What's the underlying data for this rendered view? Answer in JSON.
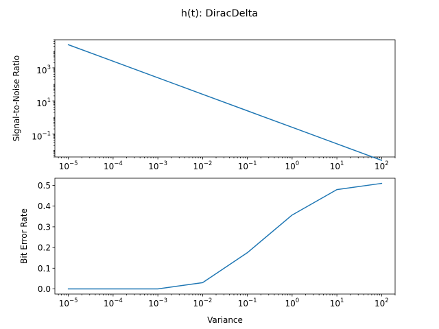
{
  "figure": {
    "suptitle": "h(t): DiracDelta"
  },
  "colors": {
    "series": "#1f77b4",
    "axes": "#000000",
    "background": "#ffffff"
  },
  "chart_data": [
    {
      "type": "line",
      "title": "",
      "xlabel": "",
      "ylabel": "Signal-to-Noise Ratio",
      "xscale": "log",
      "yscale": "log",
      "xlim": [
        5e-06,
        200
      ],
      "ylim": [
        0.004,
        50000
      ],
      "x": [
        1e-05,
        0.0001,
        0.001,
        0.01,
        0.1,
        1,
        10,
        100
      ],
      "series": [
        {
          "name": "",
          "values": [
            25000,
            2500,
            250,
            25,
            2.5,
            0.25,
            0.025,
            0.0025
          ]
        }
      ],
      "xticks": [
        1e-05,
        0.0001,
        0.001,
        0.01,
        0.1,
        1,
        10,
        100
      ],
      "xtick_labels": [
        {
          "base": "10",
          "exp": "−5"
        },
        {
          "base": "10",
          "exp": "−4"
        },
        {
          "base": "10",
          "exp": "−3"
        },
        {
          "base": "10",
          "exp": "−2"
        },
        {
          "base": "10",
          "exp": "−1"
        },
        {
          "base": "10",
          "exp": "0"
        },
        {
          "base": "10",
          "exp": "1"
        },
        {
          "base": "10",
          "exp": "2"
        }
      ],
      "yticks": [
        0.1,
        10,
        1000
      ],
      "ytick_labels": [
        {
          "base": "10",
          "exp": "−1"
        },
        {
          "base": "10",
          "exp": "1"
        },
        {
          "base": "10",
          "exp": "3"
        }
      ],
      "grid": false
    },
    {
      "type": "line",
      "title": "",
      "xlabel": "Variance",
      "ylabel": "Bit Error Rate",
      "xscale": "log",
      "yscale": "linear",
      "xlim": [
        5e-06,
        200
      ],
      "ylim": [
        -0.025,
        0.535
      ],
      "x": [
        1e-05,
        0.0001,
        0.001,
        0.01,
        0.1,
        1,
        10,
        100
      ],
      "series": [
        {
          "name": "",
          "values": [
            0.0,
            0.0,
            0.0,
            0.03,
            0.175,
            0.357,
            0.48,
            0.51
          ]
        }
      ],
      "xticks": [
        1e-05,
        0.0001,
        0.001,
        0.01,
        0.1,
        1,
        10,
        100
      ],
      "xtick_labels": [
        {
          "base": "10",
          "exp": "−5"
        },
        {
          "base": "10",
          "exp": "−4"
        },
        {
          "base": "10",
          "exp": "−3"
        },
        {
          "base": "10",
          "exp": "−2"
        },
        {
          "base": "10",
          "exp": "−1"
        },
        {
          "base": "10",
          "exp": "0"
        },
        {
          "base": "10",
          "exp": "1"
        },
        {
          "base": "10",
          "exp": "2"
        }
      ],
      "yticks": [
        0.0,
        0.1,
        0.2,
        0.3,
        0.4,
        0.5
      ],
      "ytick_labels": [
        "0.0",
        "0.1",
        "0.2",
        "0.3",
        "0.4",
        "0.5"
      ],
      "grid": false
    }
  ]
}
